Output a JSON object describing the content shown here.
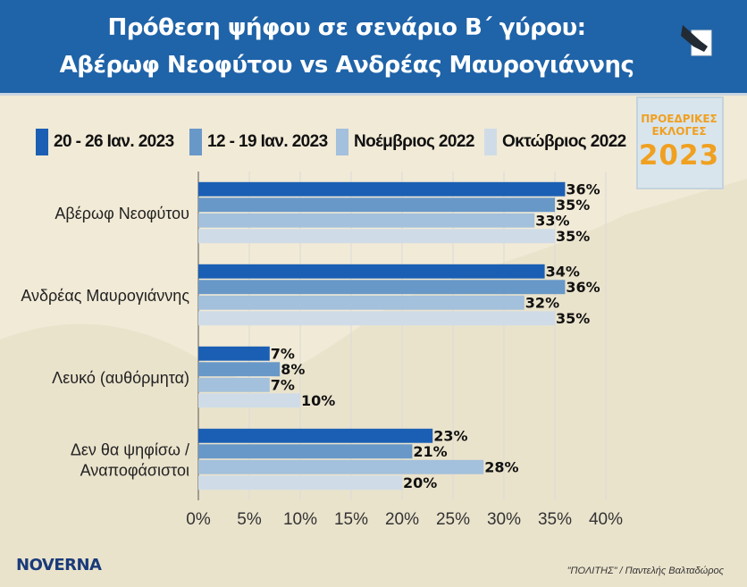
{
  "header": {
    "title_line1": "Πρόθεση ψήφου σε σενάριο Β΄ γύρου:",
    "title_line2": "Αβέρωφ Νεοφύτου vs Ανδρέας Μαυρογιάννης"
  },
  "badge": {
    "line1": "ΠΡΟΕΔΡΙΚΕΣ",
    "line2": "ΕΚΛΟΓΕΣ",
    "year": "2023"
  },
  "footer": {
    "logo": "NOVERNA",
    "credit": "\"ΠΟΛΙΤΗΣ\" / Παντελής Βαλταδώρος"
  },
  "colors": {
    "header_bg": "#1f63a8",
    "series": [
      "#1a5fb4",
      "#6898c8",
      "#a3c0dc",
      "#cfdce8"
    ],
    "badge_text": "#f0a020"
  },
  "chart_data": {
    "type": "bar",
    "orientation": "horizontal",
    "title": "Πρόθεση ψήφου σε σενάριο Β΄ γύρου: Αβέρωφ Νεοφύτου vs Ανδρέας Μαυρογιάννης",
    "xlabel": "",
    "ylabel": "",
    "xlim": [
      0,
      40
    ],
    "x_ticks": [
      0,
      5,
      10,
      15,
      20,
      25,
      30,
      35,
      40
    ],
    "tick_suffix": "%",
    "value_suffix": "%",
    "grid": true,
    "legend_position": "top",
    "categories": [
      [
        "Αβέρωφ Νεοφύτου"
      ],
      [
        "Ανδρέας Μαυρογιάννης"
      ],
      [
        "Λευκό (αυθόρμητα)"
      ],
      [
        "Δεν θα ψηφίσω /",
        "Αναποφάσιστοι"
      ]
    ],
    "series": [
      {
        "name": "20 - 26 Ιαν. 2023",
        "values": [
          36,
          34,
          7,
          23
        ]
      },
      {
        "name": "12 - 19 Ιαν. 2023",
        "values": [
          35,
          36,
          8,
          21
        ]
      },
      {
        "name": "Νοέμβριος 2022",
        "values": [
          33,
          32,
          7,
          28
        ]
      },
      {
        "name": "Οκτώβριος 2022",
        "values": [
          35,
          35,
          10,
          20
        ]
      }
    ]
  }
}
